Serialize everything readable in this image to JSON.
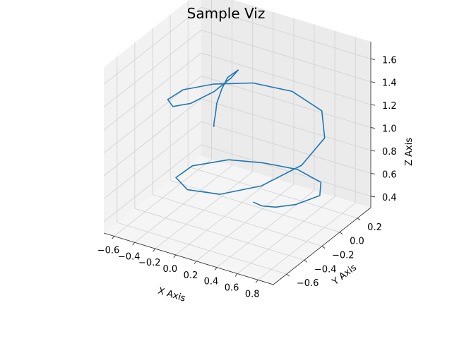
{
  "chart_data": {
    "type": "line",
    "projection": "3d",
    "title": "Sample Viz",
    "xlabel": "X Axis",
    "ylabel": "Y Axis",
    "zlabel": "Z Axis",
    "xlim": [
      -0.7,
      0.95
    ],
    "ylim": [
      -0.75,
      0.35
    ],
    "zlim": [
      0.3,
      1.75
    ],
    "xticks": [
      "−0.6",
      "−0.4",
      "−0.2",
      "0.0",
      "0.2",
      "0.4",
      "0.6",
      "0.8"
    ],
    "yticks": [
      "−0.6",
      "−0.4",
      "−0.2",
      "0.0",
      "0.2"
    ],
    "zticks": [
      "0.4",
      "0.6",
      "0.8",
      "1.0",
      "1.2",
      "1.4",
      "1.6"
    ],
    "grid": true,
    "series": [
      {
        "color": "#1f77b4",
        "points": [
          [
            0.18,
            -0.08,
            0.4
          ],
          [
            0.31,
            -0.14,
            0.44
          ],
          [
            0.48,
            -0.18,
            0.5
          ],
          [
            0.66,
            -0.16,
            0.56
          ],
          [
            0.79,
            -0.04,
            0.6
          ],
          [
            0.68,
            0.1,
            0.6
          ],
          [
            0.4,
            0.16,
            0.6
          ],
          [
            0.1,
            0.12,
            0.6
          ],
          [
            -0.15,
            0.02,
            0.62
          ],
          [
            -0.33,
            -0.18,
            0.64
          ],
          [
            -0.3,
            -0.4,
            0.68
          ],
          [
            -0.05,
            -0.56,
            0.74
          ],
          [
            0.3,
            -0.6,
            0.82
          ],
          [
            0.62,
            -0.5,
            0.92
          ],
          [
            0.82,
            -0.28,
            1.02
          ],
          [
            0.82,
            -0.02,
            1.1
          ],
          [
            0.62,
            0.18,
            1.16
          ],
          [
            0.28,
            0.24,
            1.2
          ],
          [
            -0.05,
            0.18,
            1.22
          ],
          [
            -0.3,
            0.02,
            1.24
          ],
          [
            -0.42,
            -0.18,
            1.28
          ],
          [
            -0.38,
            -0.4,
            1.34
          ],
          [
            -0.2,
            -0.55,
            1.42
          ],
          [
            0.0,
            -0.58,
            1.52
          ],
          [
            0.14,
            -0.48,
            1.6
          ],
          [
            0.2,
            -0.36,
            1.66
          ],
          [
            0.22,
            -0.3,
            1.7
          ],
          [
            0.17,
            -0.36,
            1.66
          ],
          [
            0.13,
            -0.38,
            1.56
          ],
          [
            0.08,
            -0.38,
            1.42
          ],
          [
            0.05,
            -0.36,
            1.3
          ],
          [
            0.02,
            -0.34,
            1.22
          ],
          [
            0.0,
            -0.32,
            1.16
          ]
        ]
      }
    ]
  }
}
